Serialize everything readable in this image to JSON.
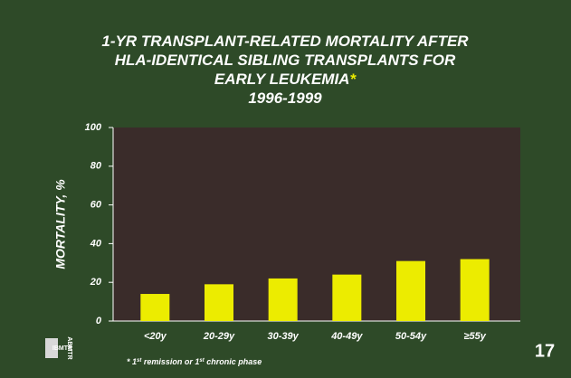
{
  "chart_data": {
    "type": "bar",
    "title": [
      "1-YR TRANSPLANT-RELATED MORTALITY AFTER",
      "HLA-IDENTICAL SIBLING TRANSPLANTS FOR",
      "EARLY LEUKEMIA",
      "1996-1999"
    ],
    "title_mark": "*",
    "ylabel": "MORTALITY, %",
    "categories": [
      "<20y",
      "20-29y",
      "30-39y",
      "40-49y",
      "50-54y",
      "≥55y"
    ],
    "values": [
      14,
      19,
      22,
      24,
      31,
      32
    ],
    "color": "#ecec00",
    "ylim": [
      0,
      100
    ],
    "yticks": [
      0,
      20,
      40,
      60,
      80,
      100
    ],
    "grid": false,
    "footnote": [
      {
        "text": "* 1"
      },
      {
        "text": "st",
        "sup": true
      },
      {
        "text": " remission or 1"
      },
      {
        "text": "st",
        "sup": true
      },
      {
        "text": " chronic phase"
      }
    ],
    "page_number": "17",
    "logo": [
      "IBMTR",
      "ABMTR"
    ]
  }
}
